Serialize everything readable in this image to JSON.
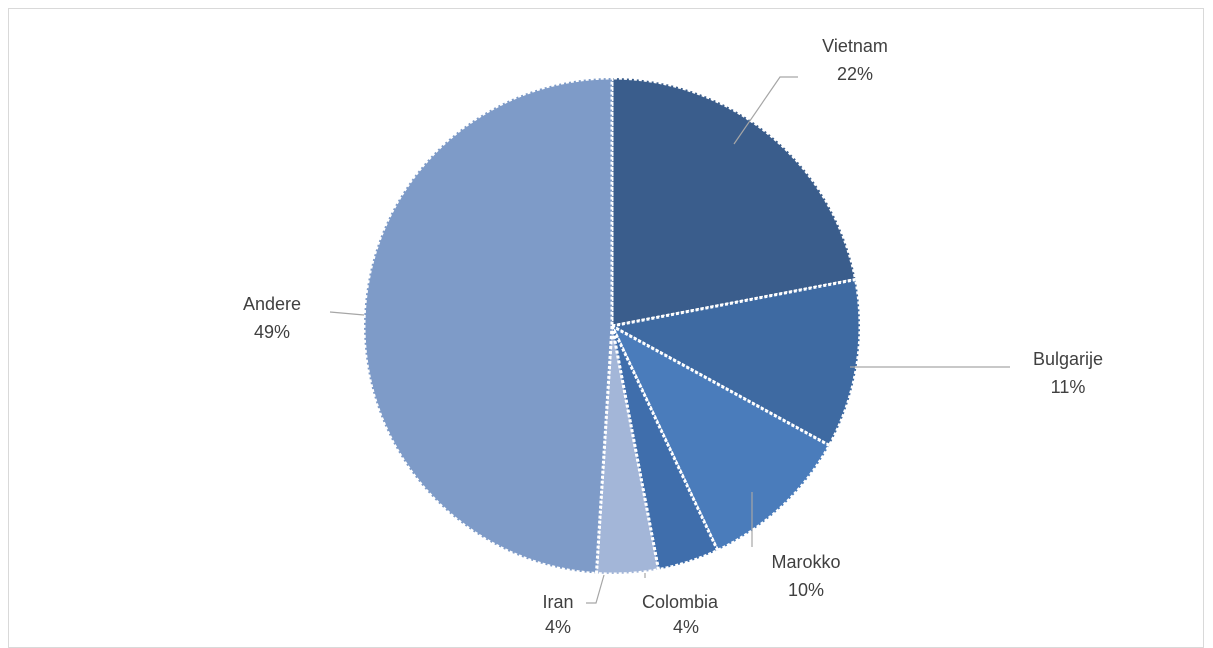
{
  "chart_data": {
    "type": "pie",
    "title": "",
    "categories": [
      "Vietnam",
      "Bulgarije",
      "Marokko",
      "Colombia",
      "Iran",
      "Andere"
    ],
    "values": [
      22,
      11,
      10,
      4,
      4,
      49
    ],
    "value_labels": [
      "22%",
      "11%",
      "10%",
      "4%",
      "4%",
      "49%"
    ],
    "colors": [
      "#3a5d8c",
      "#3e6aa2",
      "#4a7cbb",
      "#3f6eac",
      "#a3b6d8",
      "#7e9bc8"
    ],
    "start_angle": "12 o'clock",
    "direction": "clockwise",
    "slice_border": "white dotted",
    "legend": "none (data labels with leader lines)"
  }
}
